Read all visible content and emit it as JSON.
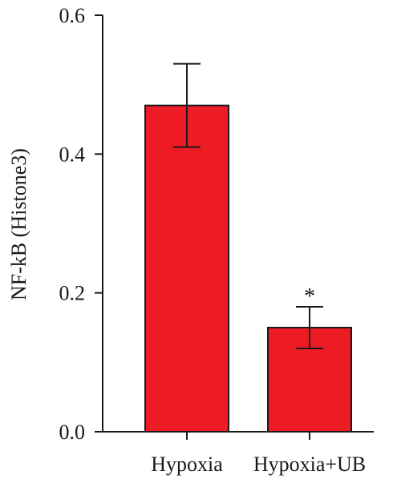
{
  "chart_data": {
    "type": "bar",
    "categories": [
      "Hypoxia",
      "Hypoxia+UB"
    ],
    "values": [
      0.47,
      0.15
    ],
    "error": [
      0.06,
      0.03
    ],
    "annotations": [
      "",
      "*"
    ],
    "ylabel": "NF-kB (Histone3)",
    "xlabel": "",
    "ylim": [
      0,
      0.6
    ],
    "yticks": [
      0.0,
      0.2,
      0.4,
      0.6
    ],
    "ytick_labels": [
      "0.0",
      "0.2",
      "0.4",
      "0.6"
    ],
    "bar_color": "#ed1c24",
    "grid": false
  }
}
